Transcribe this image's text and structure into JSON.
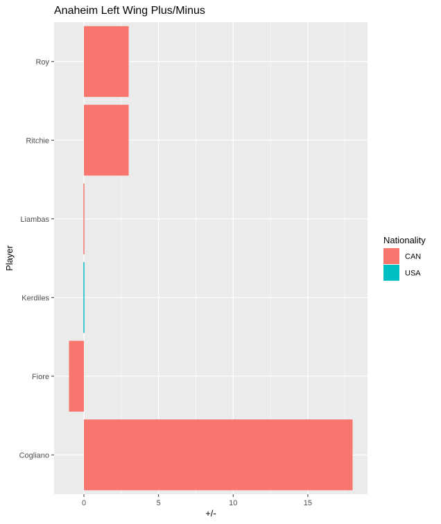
{
  "chart_data": {
    "type": "bar",
    "orientation": "horizontal",
    "title": "Anaheim Left Wing Plus/Minus",
    "xlabel": "+/-",
    "ylabel": "Player",
    "categories": [
      "Cogliano",
      "Fiore",
      "Kerdiles",
      "Liambas",
      "Ritchie",
      "Roy"
    ],
    "values": [
      18,
      -1,
      0,
      0,
      3,
      3
    ],
    "nationality": [
      "CAN",
      "CAN",
      "USA",
      "CAN",
      "CAN",
      "CAN"
    ],
    "xlim": [
      -2,
      19
    ],
    "xticks": [
      0,
      5,
      10,
      15
    ],
    "grid": true,
    "legend": {
      "title": "Nationality",
      "placement": "right",
      "entries": [
        {
          "label": "CAN",
          "color": "#F8766D"
        },
        {
          "label": "USA",
          "color": "#00BFC4"
        }
      ]
    },
    "colors": {
      "panel": "#EBEBEB",
      "grid": "#FFFFFF",
      "CAN": "#F8766D",
      "USA": "#00BFC4"
    }
  }
}
